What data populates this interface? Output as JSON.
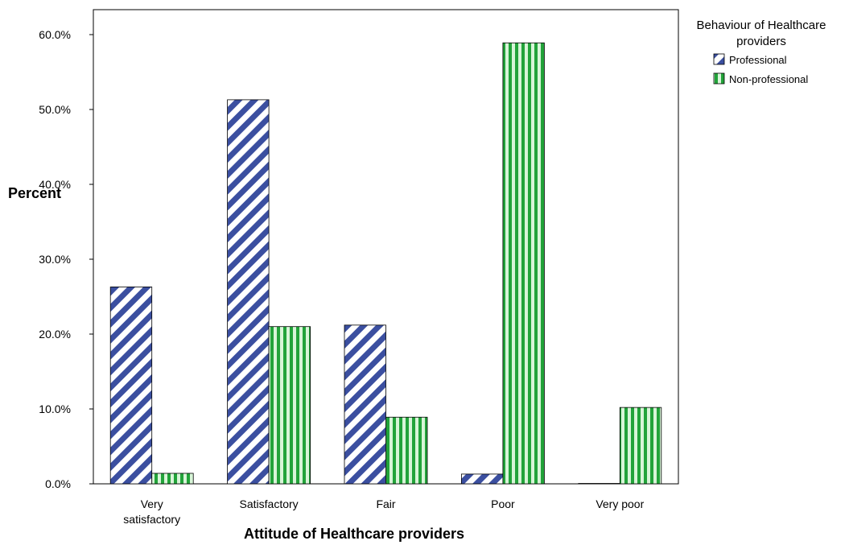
{
  "chart_data": {
    "type": "bar",
    "title": "",
    "xlabel": "Attitude of Healthcare providers",
    "ylabel": "Percent",
    "ylim": [
      0,
      60
    ],
    "ytick_labels": [
      "0.0%",
      "10.0%",
      "20.0%",
      "30.0%",
      "40.0%",
      "50.0%",
      "60.0%"
    ],
    "categories": [
      "Very satisfactory",
      "Satisfactory",
      "Fair",
      "Poor",
      "Very poor"
    ],
    "series": [
      {
        "name": "Professional",
        "values": [
          26.3,
          51.3,
          21.2,
          1.3,
          0.0
        ]
      },
      {
        "name": "Non-professional",
        "values": [
          1.4,
          21.0,
          8.9,
          58.9,
          10.2
        ]
      }
    ],
    "legend": {
      "title": "Behaviour of Healthcare providers",
      "position": "top-right"
    },
    "grid": false
  },
  "colors": {
    "professional_stripe": "#3b4fa0",
    "professional_bg": "#ffffff",
    "nonprofessional_stripe": "#22a33a",
    "nonprofessional_bg": "#d8f5d8"
  }
}
